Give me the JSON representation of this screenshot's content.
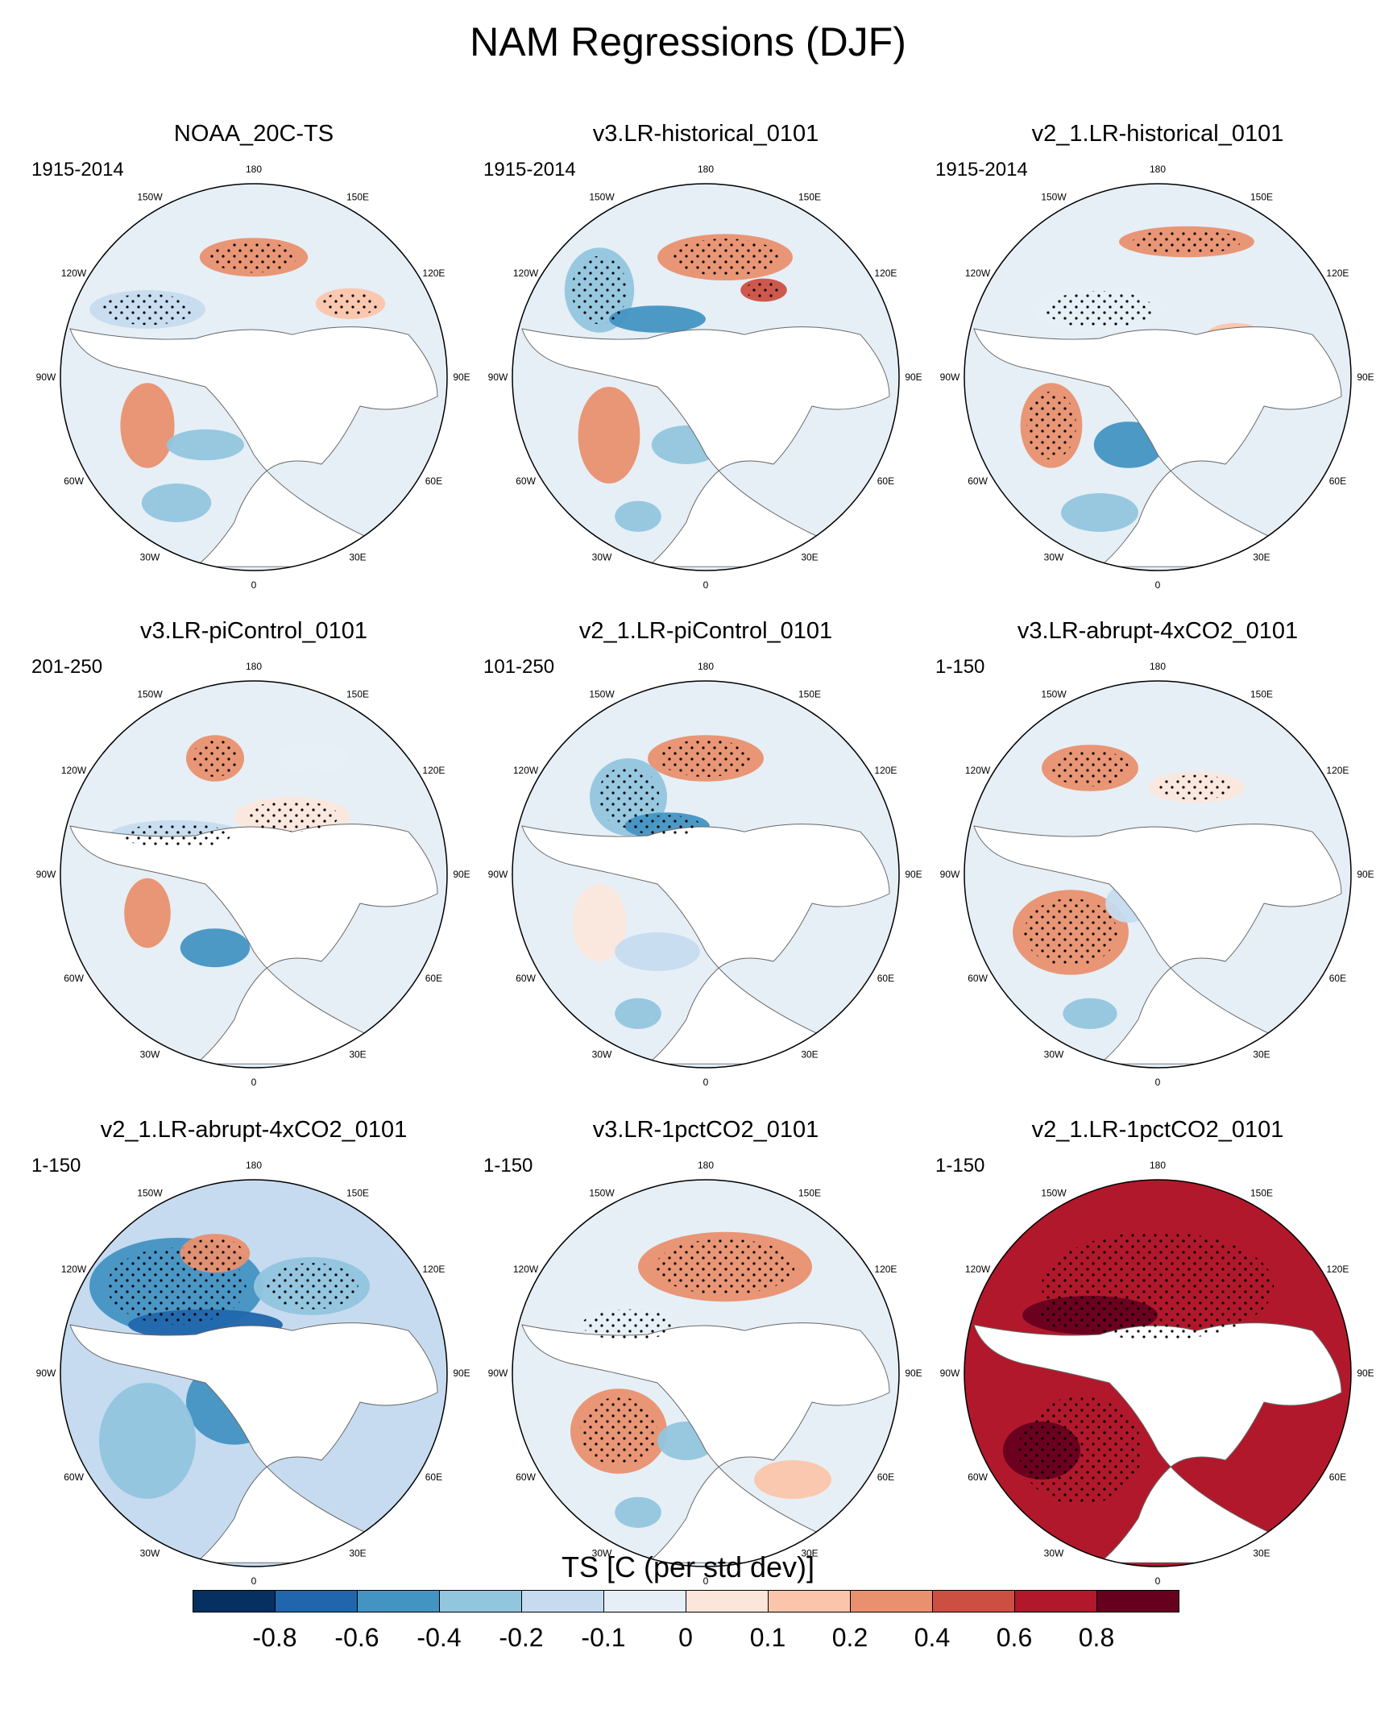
{
  "title": "NAM Regressions (DJF)",
  "longitude_labels": [
    "180",
    "150E",
    "120E",
    "90E",
    "60E",
    "30E",
    "0",
    "30W",
    "60W",
    "90W",
    "120W",
    "150W"
  ],
  "panels": [
    {
      "title": "NOAA_20C-TS",
      "period": "1915-2014"
    },
    {
      "title": "v3.LR-historical_0101",
      "period": "1915-2014"
    },
    {
      "title": "v2_1.LR-historical_0101",
      "period": "1915-2014"
    },
    {
      "title": "v3.LR-piControl_0101",
      "period": "201-250"
    },
    {
      "title": "v2_1.LR-piControl_0101",
      "period": "101-250"
    },
    {
      "title": "v3.LR-abrupt-4xCO2_0101",
      "period": "1-150"
    },
    {
      "title": "v2_1.LR-abrupt-4xCO2_0101",
      "period": "1-150"
    },
    {
      "title": "v3.LR-1pctCO2_0101",
      "period": "1-150"
    },
    {
      "title": "v2_1.LR-1pctCO2_0101",
      "period": "1-150"
    }
  ],
  "colorbar": {
    "title": "TS [C (per std dev)]",
    "labels": [
      "-0.8",
      "-0.6",
      "-0.4",
      "-0.2",
      "-0.1",
      "0",
      "0.1",
      "0.2",
      "0.4",
      "0.6",
      "0.8"
    ],
    "colors": [
      "#053061",
      "#2166ac",
      "#4393c3",
      "#92c5de",
      "#c6dbef",
      "#e6eff6",
      "#fbe6dc",
      "#fbc5ab",
      "#e9906f",
      "#cd4f42",
      "#b2182b",
      "#67001f"
    ]
  }
}
